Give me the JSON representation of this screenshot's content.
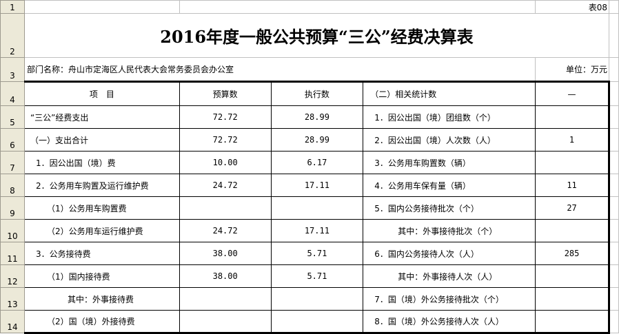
{
  "sheet": {
    "table_no": "表08",
    "title": "2016年度一般公共预算“三公”经费决算表",
    "dept": "部门名称：舟山市定海区人民代表大会常务委员会办公室",
    "unit": "单位：万元",
    "row_numbers": [
      "1",
      "2",
      "3",
      "4",
      "5",
      "6",
      "7",
      "8",
      "9",
      "10",
      "11",
      "12",
      "13",
      "14"
    ],
    "headers": [
      "项　目",
      "预算数",
      "执行数",
      "（二）相关统计数",
      "—"
    ],
    "rows": [
      [
        "“三公”经费支出",
        "72.72",
        "28.99",
        "1．因公出国（境）团组数（个）",
        ""
      ],
      [
        "（一）支出合计",
        "72.72",
        "28.99",
        "2．因公出国（境）人次数（人）",
        "1"
      ],
      [
        "1．因公出国（境）费",
        "10.00",
        "6.17",
        "3．公务用车购置数（辆）",
        ""
      ],
      [
        "2．公务用车购置及运行维护费",
        "24.72",
        "17.11",
        "4．公务用车保有量（辆）",
        "11"
      ],
      [
        "（1）公务用车购置费",
        "",
        "",
        "5．国内公务接待批次（个）",
        "27"
      ],
      [
        "（2）公务用车运行维护费",
        "24.72",
        "17.11",
        "其中：外事接待批次（个）",
        ""
      ],
      [
        "3．公务接待费",
        "38.00",
        "5.71",
        "6．国内公务接待人次（人）",
        "285"
      ],
      [
        "（1）国内接待费",
        "38.00",
        "5.71",
        "其中：外事接待人次（人）",
        ""
      ],
      [
        "其中：外事接待费",
        "",
        "",
        "7．国（境）外公务接待批次（个）",
        ""
      ],
      [
        "（2）国（境）外接待费",
        "",
        "",
        "8．国（境）外公务接待人次（人）",
        ""
      ]
    ]
  }
}
